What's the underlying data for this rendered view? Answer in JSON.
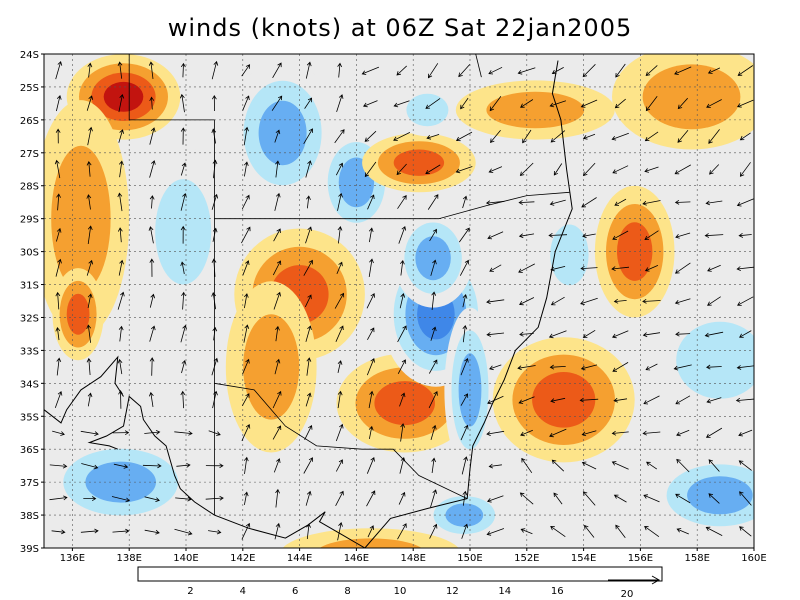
{
  "title": "winds (knots) at 06Z Sat 22jan2005",
  "map": {
    "lon_range": [
      135,
      160
    ],
    "lat_range": [
      -39,
      -24
    ],
    "x_ticks": [
      "136E",
      "138E",
      "140E",
      "142E",
      "144E",
      "146E",
      "148E",
      "150E",
      "152E",
      "154E",
      "156E",
      "158E",
      "160E"
    ],
    "y_ticks": [
      "24S",
      "25S",
      "26S",
      "27S",
      "28S",
      "29S",
      "30S",
      "31S",
      "32S",
      "33S",
      "34S",
      "35S",
      "36S",
      "37S",
      "38S",
      "39S"
    ],
    "grid": "dashed",
    "vector_reference_label": "20"
  },
  "colorbar": {
    "labels": [
      "2",
      "4",
      "6",
      "8",
      "10",
      "12",
      "14",
      "16"
    ],
    "colors": [
      "#1e63d6",
      "#3f87e8",
      "#67aef2",
      "#b5e6f7",
      "#ebebeb",
      "#fde48a",
      "#f5a030",
      "#ec5a18",
      "#c2140f",
      "#8a0808"
    ]
  },
  "speed_blobs": [
    {
      "lon": 137.8,
      "lat": -25.3,
      "speed": 16.5,
      "rx": 2.0,
      "ry": 1.3
    },
    {
      "lon": 136.3,
      "lat": -29.0,
      "speed": 12.5,
      "rx": 1.7,
      "ry": 3.6
    },
    {
      "lon": 136.2,
      "lat": -31.9,
      "speed": 14.5,
      "rx": 0.9,
      "ry": 1.4
    },
    {
      "lon": 139.9,
      "lat": -29.4,
      "speed": 6.5,
      "rx": 1.6,
      "ry": 2.6
    },
    {
      "lon": 143.4,
      "lat": -26.4,
      "speed": 3.5,
      "rx": 1.9,
      "ry": 2.2
    },
    {
      "lon": 146.0,
      "lat": -27.9,
      "speed": 4.5,
      "rx": 1.4,
      "ry": 1.7
    },
    {
      "lon": 144.0,
      "lat": -31.3,
      "speed": 15.5,
      "rx": 2.3,
      "ry": 2.0
    },
    {
      "lon": 147.7,
      "lat": -34.6,
      "speed": 14.5,
      "rx": 2.4,
      "ry": 1.5
    },
    {
      "lon": 143.0,
      "lat": -33.5,
      "speed": 12.5,
      "rx": 1.6,
      "ry": 2.6
    },
    {
      "lon": 148.8,
      "lat": -31.9,
      "speed": 2.5,
      "rx": 1.9,
      "ry": 2.2
    },
    {
      "lon": 148.7,
      "lat": -30.2,
      "speed": 4.5,
      "rx": 1.4,
      "ry": 1.5
    },
    {
      "lon": 150.0,
      "lat": -34.2,
      "speed": 4.5,
      "rx": 0.9,
      "ry": 2.5
    },
    {
      "lon": 149.8,
      "lat": -38.0,
      "speed": 3.0,
      "rx": 1.5,
      "ry": 0.8
    },
    {
      "lon": 148.2,
      "lat": -27.3,
      "speed": 14.5,
      "rx": 2.0,
      "ry": 0.9
    },
    {
      "lon": 148.5,
      "lat": -25.7,
      "speed": 5.0,
      "rx": 1.2,
      "ry": 0.8
    },
    {
      "lon": 152.3,
      "lat": -25.7,
      "speed": 13.5,
      "rx": 2.8,
      "ry": 0.9
    },
    {
      "lon": 153.5,
      "lat": -30.1,
      "speed": 5.5,
      "rx": 1.1,
      "ry": 1.5
    },
    {
      "lon": 155.8,
      "lat": -30.0,
      "speed": 14.5,
      "rx": 1.4,
      "ry": 2.0
    },
    {
      "lon": 153.3,
      "lat": -34.5,
      "speed": 15.0,
      "rx": 2.5,
      "ry": 1.9
    },
    {
      "lon": 157.8,
      "lat": -25.3,
      "speed": 13.5,
      "rx": 2.8,
      "ry": 1.6
    },
    {
      "lon": 158.8,
      "lat": -33.3,
      "speed": 5.0,
      "rx": 2.5,
      "ry": 1.9
    },
    {
      "lon": 158.8,
      "lat": -37.4,
      "speed": 3.5,
      "rx": 2.6,
      "ry": 1.3
    },
    {
      "lon": 137.7,
      "lat": -37.0,
      "speed": 3.5,
      "rx": 2.8,
      "ry": 1.4
    },
    {
      "lon": 146.5,
      "lat": -39.2,
      "speed": 13.5,
      "rx": 3.2,
      "ry": 0.8
    }
  ]
}
